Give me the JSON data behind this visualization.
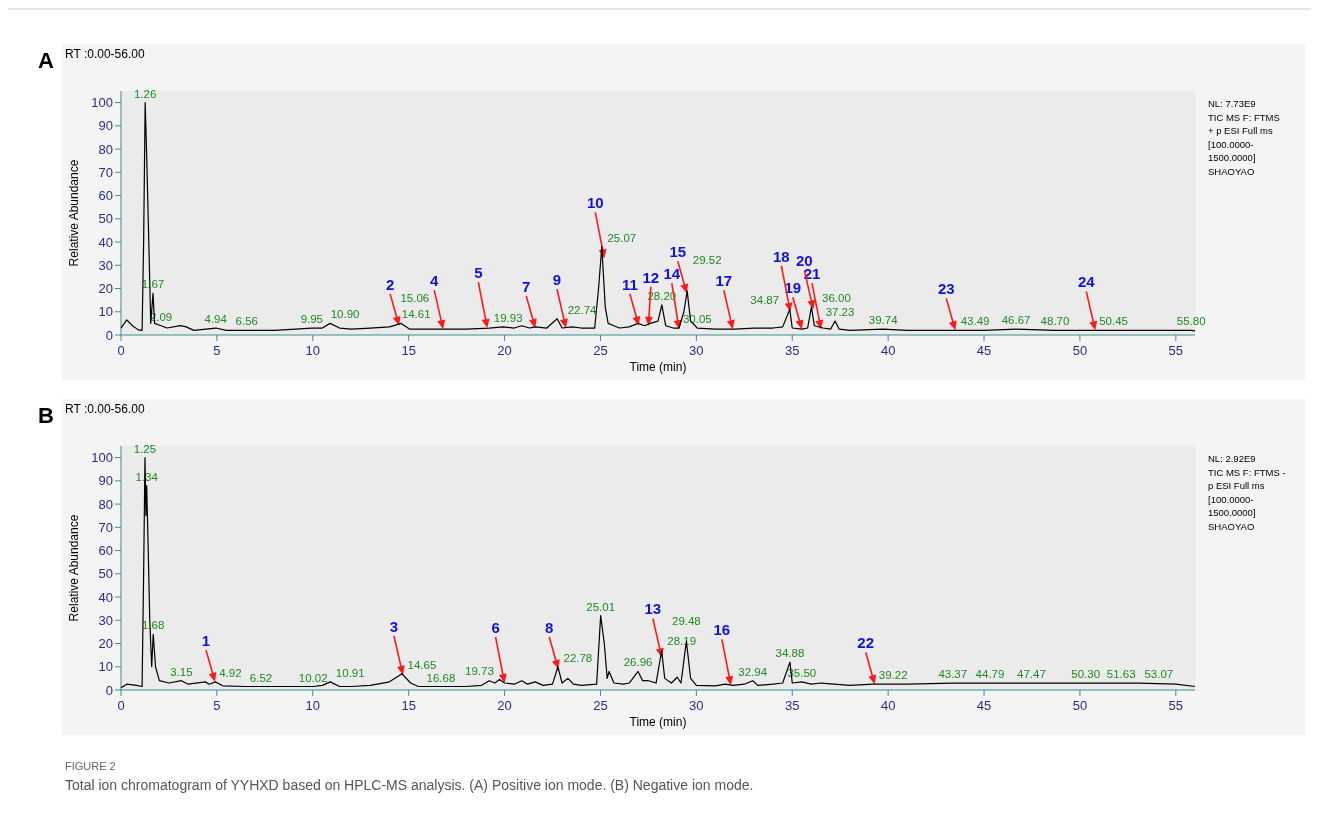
{
  "chart_data": [
    {
      "type": "line",
      "title": "A",
      "subtitle": "RT :0.00-56.00",
      "xlabel": "Time (min)",
      "ylabel": "Relative Abundance",
      "xlim": [
        0,
        56
      ],
      "xticks": [
        0,
        5,
        10,
        15,
        20,
        25,
        30,
        35,
        40,
        45,
        50,
        55
      ],
      "ylim": [
        0,
        105
      ],
      "yticks": [
        0,
        10,
        20,
        30,
        40,
        50,
        60,
        70,
        80,
        90,
        100
      ],
      "series": [
        {
          "color": "#000000",
          "x": [
            0,
            0.3,
            0.6,
            0.9,
            1.1,
            1.18,
            1.26,
            1.33,
            1.45,
            1.55,
            1.67,
            1.75,
            2.09,
            2.4,
            3.1,
            3.4,
            3.8,
            4.94,
            5.5,
            6.56,
            8,
            9.95,
            10.5,
            10.9,
            11.4,
            12,
            13,
            14,
            14.61,
            15.06,
            16,
            17,
            18,
            19.2,
            19.93,
            20.5,
            20.9,
            21.3,
            21.6,
            22.2,
            22.74,
            23,
            23.5,
            24,
            24.7,
            24.9,
            25.07,
            25.25,
            25.4,
            25.7,
            26,
            26.5,
            26.96,
            27.3,
            27.6,
            28,
            28.2,
            28.4,
            28.8,
            29.1,
            29.35,
            29.52,
            29.7,
            30.05,
            31,
            32,
            33,
            34,
            34.5,
            34.87,
            35,
            35.5,
            35.8,
            36,
            36.15,
            36.6,
            37,
            37.23,
            37.45,
            38,
            39.74,
            41,
            43.49,
            45,
            46.67,
            48.7,
            50.45,
            52,
            55.8,
            56
          ],
          "values": [
            3,
            6.5,
            4,
            2.2,
            2,
            40,
            100,
            80,
            40,
            5,
            18,
            5,
            4,
            3,
            4,
            3.5,
            2,
            3,
            2,
            2,
            2,
            3,
            3,
            5,
            3,
            2.5,
            3,
            3.5,
            5,
            2.5,
            2.5,
            2.5,
            2.5,
            3,
            3.5,
            3,
            4,
            3,
            3.5,
            3,
            7,
            3,
            3.5,
            3,
            3,
            20,
            38,
            12,
            5,
            4,
            3,
            3.5,
            5,
            4,
            5,
            6,
            13,
            4,
            3,
            3,
            10,
            19,
            6,
            3,
            2.5,
            2.5,
            3,
            3,
            3.5,
            11,
            3,
            2.5,
            3,
            12,
            4,
            3,
            2.5,
            6,
            2.5,
            2,
            2.5,
            2,
            2,
            2,
            2.5,
            2,
            2,
            2,
            2,
            1.8
          ]
        }
      ],
      "annotations": [
        "NL: 7.73E9",
        "TIC  MS  F: FTMS",
        "+ p ESI Full ms",
        "[100.0000-",
        "1500.0000]",
        "SHAOYAO",
        {
          "text": "1.26",
          "x": 1.26,
          "y": 100
        },
        {
          "text": "1.67",
          "x": 1.67,
          "y": 18
        },
        {
          "text": "2.09",
          "x": 2.09,
          "y": 4
        },
        {
          "text": "4.94",
          "x": 4.94,
          "y": 3
        },
        {
          "text": "6.56",
          "x": 6.56,
          "y": 2
        },
        {
          "text": "9.95",
          "x": 9.95,
          "y": 3
        },
        {
          "text": "10.90",
          "x": 10.9,
          "y": 5
        },
        {
          "text": "14.61",
          "x": 14.61,
          "y": 5
        },
        {
          "text": "15.06",
          "x": 15.06,
          "y": 2.5
        },
        {
          "text": "19.93",
          "x": 19.93,
          "y": 3.5
        },
        {
          "text": "22.74",
          "x": 22.74,
          "y": 7
        },
        {
          "text": "25.07",
          "x": 25.07,
          "y": 38
        },
        {
          "text": "28.20",
          "x": 28.2,
          "y": 13
        },
        {
          "text": "29.52",
          "x": 29.52,
          "y": 19
        },
        {
          "text": "30.05",
          "x": 30.05,
          "y": 3
        },
        {
          "text": "34.87",
          "x": 34.87,
          "y": 11
        },
        {
          "text": "36.00",
          "x": 36,
          "y": 12
        },
        {
          "text": "37.23",
          "x": 37.23,
          "y": 6
        },
        {
          "text": "39.74",
          "x": 39.74,
          "y": 2.5
        },
        {
          "text": "43.49",
          "x": 43.49,
          "y": 2
        },
        {
          "text": "46.67",
          "x": 46.67,
          "y": 2.5
        },
        {
          "text": "48.70",
          "x": 48.7,
          "y": 2
        },
        {
          "text": "50.45",
          "x": 50.45,
          "y": 2
        },
        {
          "text": "55.80",
          "x": 55.8,
          "y": 2
        },
        {
          "text": "2",
          "x": 14.5,
          "y": 4
        },
        {
          "text": "4",
          "x": 16.8,
          "y": 2.5
        },
        {
          "text": "5",
          "x": 19.1,
          "y": 3
        },
        {
          "text": "7",
          "x": 21.6,
          "y": 3
        },
        {
          "text": "9",
          "x": 23.2,
          "y": 3
        },
        {
          "text": "10",
          "x": 25.2,
          "y": 33
        },
        {
          "text": "11",
          "x": 27,
          "y": 4
        },
        {
          "text": "12",
          "x": 27.5,
          "y": 4
        },
        {
          "text": "14",
          "x": 29.1,
          "y": 2.5
        },
        {
          "text": "15",
          "x": 29.5,
          "y": 18
        },
        {
          "text": "17",
          "x": 31.9,
          "y": 2.5
        },
        {
          "text": "18",
          "x": 34.9,
          "y": 10
        },
        {
          "text": "19",
          "x": 35.5,
          "y": 2.5
        },
        {
          "text": "20",
          "x": 36.1,
          "y": 11
        },
        {
          "text": "21",
          "x": 36.5,
          "y": 2.5
        },
        {
          "text": "23",
          "x": 43.5,
          "y": 2
        },
        {
          "text": "24",
          "x": 50.8,
          "y": 2
        }
      ]
    },
    {
      "type": "line",
      "title": "B",
      "subtitle": "RT :0.00-56.00",
      "xlabel": "Time (min)",
      "ylabel": "Relative Abundance",
      "xlim": [
        0,
        56
      ],
      "xticks": [
        0,
        5,
        10,
        15,
        20,
        25,
        30,
        35,
        40,
        45,
        50,
        55
      ],
      "ylim": [
        0,
        105
      ],
      "yticks": [
        0,
        10,
        20,
        30,
        40,
        50,
        60,
        70,
        80,
        90,
        100
      ],
      "series": [
        {
          "color": "#000000",
          "x": [
            0,
            0.3,
            0.8,
            1.1,
            1.18,
            1.25,
            1.3,
            1.34,
            1.42,
            1.5,
            1.6,
            1.68,
            1.8,
            2,
            2.5,
            3.15,
            3.5,
            4.4,
            4.6,
            4.92,
            5.3,
            6.52,
            8,
            10.02,
            10.5,
            10.91,
            11.4,
            12,
            13,
            14,
            14.65,
            15.1,
            15.5,
            16.68,
            18,
            18.8,
            19.2,
            19.5,
            19.73,
            20,
            20.5,
            20.9,
            21.2,
            21.6,
            22,
            22.5,
            22.78,
            23,
            23.3,
            23.6,
            24,
            24.8,
            25.01,
            25.2,
            25.35,
            25.45,
            25.7,
            26.2,
            26.5,
            26.96,
            27.2,
            27.5,
            27.9,
            28.19,
            28.35,
            28.7,
            29,
            29.2,
            29.48,
            29.7,
            30,
            31,
            31.5,
            31.9,
            32.5,
            32.94,
            33.2,
            34,
            34.5,
            34.88,
            35,
            35.5,
            36,
            36.5,
            38,
            39.22,
            41,
            43.37,
            44.79,
            46,
            47.47,
            50.3,
            51.63,
            53.07,
            55,
            56
          ],
          "values": [
            1,
            2.5,
            2,
            1.5,
            50,
            100,
            75,
            88,
            60,
            30,
            10,
            24,
            10,
            4,
            3,
            4,
            2.5,
            3.5,
            2.5,
            3.5,
            1.8,
            1.5,
            1.5,
            1.5,
            2,
            3.5,
            1.5,
            1.5,
            2,
            3.5,
            7,
            3,
            1.5,
            1.5,
            1.5,
            2,
            4,
            3,
            4.5,
            3,
            2.5,
            4,
            2.5,
            3.5,
            2,
            2.5,
            10,
            3,
            5,
            2.5,
            2,
            2.5,
            32,
            20,
            5,
            8,
            3,
            2.5,
            3,
            8,
            4,
            4,
            3,
            17,
            5,
            3,
            5.5,
            3,
            21,
            5,
            2,
            1.8,
            2.5,
            2,
            2.5,
            4,
            2,
            2.5,
            3,
            12,
            3,
            3.5,
            2.5,
            3,
            2,
            2.5,
            2.5,
            3,
            3,
            3,
            3,
            3,
            3,
            3,
            2.5,
            1.5
          ]
        }
      ],
      "annotations": [
        "NL: 2.92E9",
        "TIC  MS  F: FTMS -",
        "p ESI Full ms",
        "[100.0000-",
        "1500.0000]",
        "SHAOYAO",
        {
          "text": "1.25",
          "x": 1.25,
          "y": 100
        },
        {
          "text": "1.34",
          "x": 1.34,
          "y": 88
        },
        {
          "text": "1.68",
          "x": 1.68,
          "y": 24
        },
        {
          "text": "3.15",
          "x": 3.15,
          "y": 4
        },
        {
          "text": "4.92",
          "x": 4.92,
          "y": 3.5
        },
        {
          "text": "6.52",
          "x": 6.52,
          "y": 1.5
        },
        {
          "text": "10.02",
          "x": 10.02,
          "y": 1.5
        },
        {
          "text": "10.91",
          "x": 10.91,
          "y": 3.5
        },
        {
          "text": "14.65",
          "x": 14.65,
          "y": 7
        },
        {
          "text": "16.68",
          "x": 16.68,
          "y": 1.5
        },
        {
          "text": "19.73",
          "x": 19.73,
          "y": 4.5
        },
        {
          "text": "22.78",
          "x": 22.78,
          "y": 10
        },
        {
          "text": "25.01",
          "x": 25.01,
          "y": 32
        },
        {
          "text": "26.96",
          "x": 26.96,
          "y": 8
        },
        {
          "text": "28.19",
          "x": 28.19,
          "y": 17
        },
        {
          "text": "29.48",
          "x": 29.48,
          "y": 21
        },
        {
          "text": "32.94",
          "x": 32.94,
          "y": 4
        },
        {
          "text": "34.88",
          "x": 34.88,
          "y": 12
        },
        {
          "text": "35.50",
          "x": 35.5,
          "y": 3.5
        },
        {
          "text": "39.22",
          "x": 39.22,
          "y": 2.5
        },
        {
          "text": "43.37",
          "x": 43.37,
          "y": 3
        },
        {
          "text": "44.79",
          "x": 44.79,
          "y": 3
        },
        {
          "text": "47.47",
          "x": 47.47,
          "y": 3
        },
        {
          "text": "50.30",
          "x": 50.3,
          "y": 3
        },
        {
          "text": "51.63",
          "x": 51.63,
          "y": 3
        },
        {
          "text": "53.07",
          "x": 53.07,
          "y": 3
        },
        {
          "text": "1",
          "x": 4.9,
          "y": 3.5
        },
        {
          "text": "3",
          "x": 14.7,
          "y": 6.5
        },
        {
          "text": "6",
          "x": 20,
          "y": 3
        },
        {
          "text": "8",
          "x": 22.8,
          "y": 9
        },
        {
          "text": "13",
          "x": 28.2,
          "y": 14
        },
        {
          "text": "16",
          "x": 31.8,
          "y": 2
        },
        {
          "text": "22",
          "x": 39.3,
          "y": 2.5
        }
      ]
    },
    {
      "type": "other",
      "title": "FIGURE 2",
      "subtitle": "Total ion chromatogram of YYHXD based on HPLC-MS analysis. (A) Positive ion mode. (B) Negative ion mode."
    }
  ]
}
